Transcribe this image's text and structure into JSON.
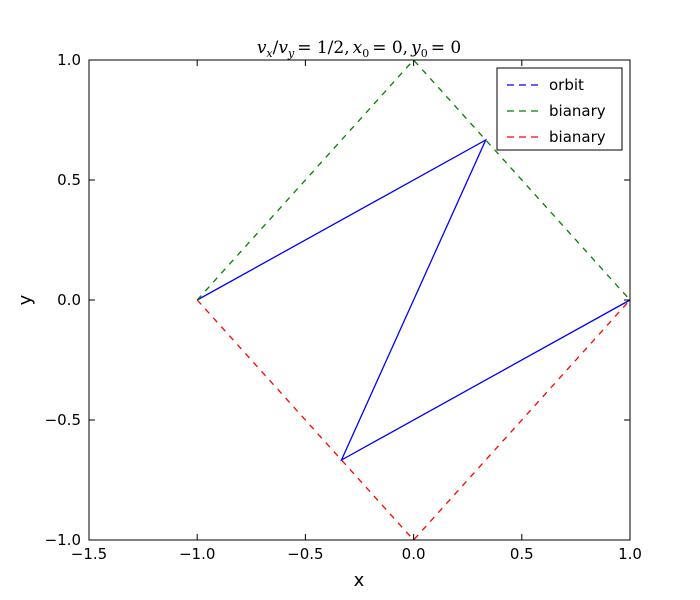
{
  "chart_data": {
    "type": "line",
    "title": "v_x/v_y = 1/2, x_0 = 0, y_0 = 0",
    "title_parts": {
      "ratio_num": "v",
      "ratio_num_sub": "x",
      "slash": "/",
      "ratio_den": "v",
      "ratio_den_sub": "y",
      "ratio_val": "= 1/2,",
      "x0": "x",
      "x0_sub": "0",
      "x0_val": "= 0,",
      "y0": "y",
      "y0_sub": "0",
      "y0_val": "= 0"
    },
    "xlabel": "x",
    "ylabel": "y",
    "xlim": [
      -1.5,
      1.0
    ],
    "ylim": [
      -1.0,
      1.0
    ],
    "xticks": [
      {
        "value": -1.5,
        "label": "−1.5"
      },
      {
        "value": -1.0,
        "label": "−1.0"
      },
      {
        "value": -0.5,
        "label": "−0.5"
      },
      {
        "value": 0.0,
        "label": "0.0"
      },
      {
        "value": 0.5,
        "label": "0.5"
      },
      {
        "value": 1.0,
        "label": "1.0"
      }
    ],
    "yticks": [
      {
        "value": -1.0,
        "label": "−1.0"
      },
      {
        "value": -0.5,
        "label": "−0.5"
      },
      {
        "value": 0.0,
        "label": "0.0"
      },
      {
        "value": 0.5,
        "label": "0.5"
      },
      {
        "value": 1.0,
        "label": "1.0"
      }
    ],
    "grid": false,
    "legend_position": "top-right",
    "series": [
      {
        "name": "orbit",
        "color": "#0000ff",
        "style": "solid",
        "legend_style": "dashed",
        "x": [
          -1.0,
          0.3333,
          -0.3333,
          1.0
        ],
        "y": [
          0.0,
          0.6667,
          -0.6667,
          0.0
        ]
      },
      {
        "name": "bianary",
        "color": "#008000",
        "style": "dashed",
        "x": [
          -1.0,
          0.0,
          1.0
        ],
        "y": [
          0.0,
          1.0,
          0.0
        ]
      },
      {
        "name": "bianary",
        "color": "#ff0000",
        "style": "dashed",
        "x": [
          -1.0,
          0.0,
          1.0
        ],
        "y": [
          0.0,
          -1.0,
          0.0
        ]
      }
    ]
  }
}
